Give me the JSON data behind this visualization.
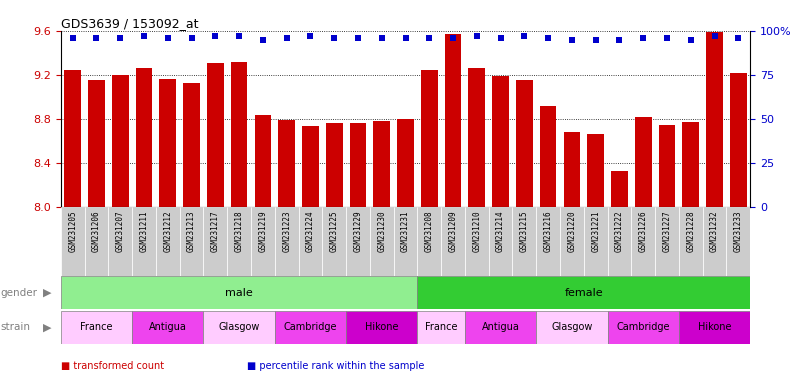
{
  "title": "GDS3639 / 153092_at",
  "samples": [
    "GSM231205",
    "GSM231206",
    "GSM231207",
    "GSM231211",
    "GSM231212",
    "GSM231213",
    "GSM231217",
    "GSM231218",
    "GSM231219",
    "GSM231223",
    "GSM231224",
    "GSM231225",
    "GSM231229",
    "GSM231230",
    "GSM231231",
    "GSM231208",
    "GSM231209",
    "GSM231210",
    "GSM231214",
    "GSM231215",
    "GSM231216",
    "GSM231220",
    "GSM231221",
    "GSM231222",
    "GSM231226",
    "GSM231227",
    "GSM231228",
    "GSM231232",
    "GSM231233"
  ],
  "bar_values": [
    9.24,
    9.15,
    9.2,
    9.26,
    9.16,
    9.13,
    9.31,
    9.32,
    8.84,
    8.79,
    8.74,
    8.76,
    8.76,
    8.78,
    8.8,
    9.24,
    9.57,
    9.26,
    9.19,
    9.15,
    8.92,
    8.68,
    8.66,
    8.33,
    8.82,
    8.75,
    8.77,
    9.59,
    9.22
  ],
  "percentile_values": [
    96,
    96,
    96,
    97,
    96,
    96,
    97,
    97,
    95,
    96,
    97,
    96,
    96,
    96,
    96,
    96,
    96,
    97,
    96,
    97,
    96,
    95,
    95,
    95,
    96,
    96,
    95,
    97,
    96
  ],
  "ylim": [
    8.0,
    9.6
  ],
  "yticks": [
    8.0,
    8.4,
    8.8,
    9.2,
    9.6
  ],
  "right_ytick_vals": [
    0,
    25,
    50,
    75,
    100
  ],
  "right_ytick_labels": [
    "0",
    "25",
    "50",
    "75",
    "100%"
  ],
  "bar_color": "#cc0000",
  "dot_color": "#0000cc",
  "background_color": "#ffffff",
  "grid_color": "#000000",
  "tick_bg_color": "#cccccc",
  "gender_groups": [
    {
      "label": "male",
      "start": 0,
      "end": 15,
      "color": "#90ee90"
    },
    {
      "label": "female",
      "start": 15,
      "end": 29,
      "color": "#33cc33"
    }
  ],
  "strain_groups": [
    {
      "label": "France",
      "start": 0,
      "end": 3,
      "color": "#ffccff"
    },
    {
      "label": "Antigua",
      "start": 3,
      "end": 6,
      "color": "#ee44ee"
    },
    {
      "label": "Glasgow",
      "start": 6,
      "end": 9,
      "color": "#ffccff"
    },
    {
      "label": "Cambridge",
      "start": 9,
      "end": 12,
      "color": "#ee44ee"
    },
    {
      "label": "Hikone",
      "start": 12,
      "end": 15,
      "color": "#cc00cc"
    },
    {
      "label": "France",
      "start": 15,
      "end": 17,
      "color": "#ffccff"
    },
    {
      "label": "Antigua",
      "start": 17,
      "end": 20,
      "color": "#ee44ee"
    },
    {
      "label": "Glasgow",
      "start": 20,
      "end": 23,
      "color": "#ffccff"
    },
    {
      "label": "Cambridge",
      "start": 23,
      "end": 26,
      "color": "#ee44ee"
    },
    {
      "label": "Hikone",
      "start": 26,
      "end": 29,
      "color": "#cc00cc"
    }
  ],
  "legend_items": [
    {
      "label": "transformed count",
      "color": "#cc0000"
    },
    {
      "label": "percentile rank within the sample",
      "color": "#0000cc"
    }
  ]
}
